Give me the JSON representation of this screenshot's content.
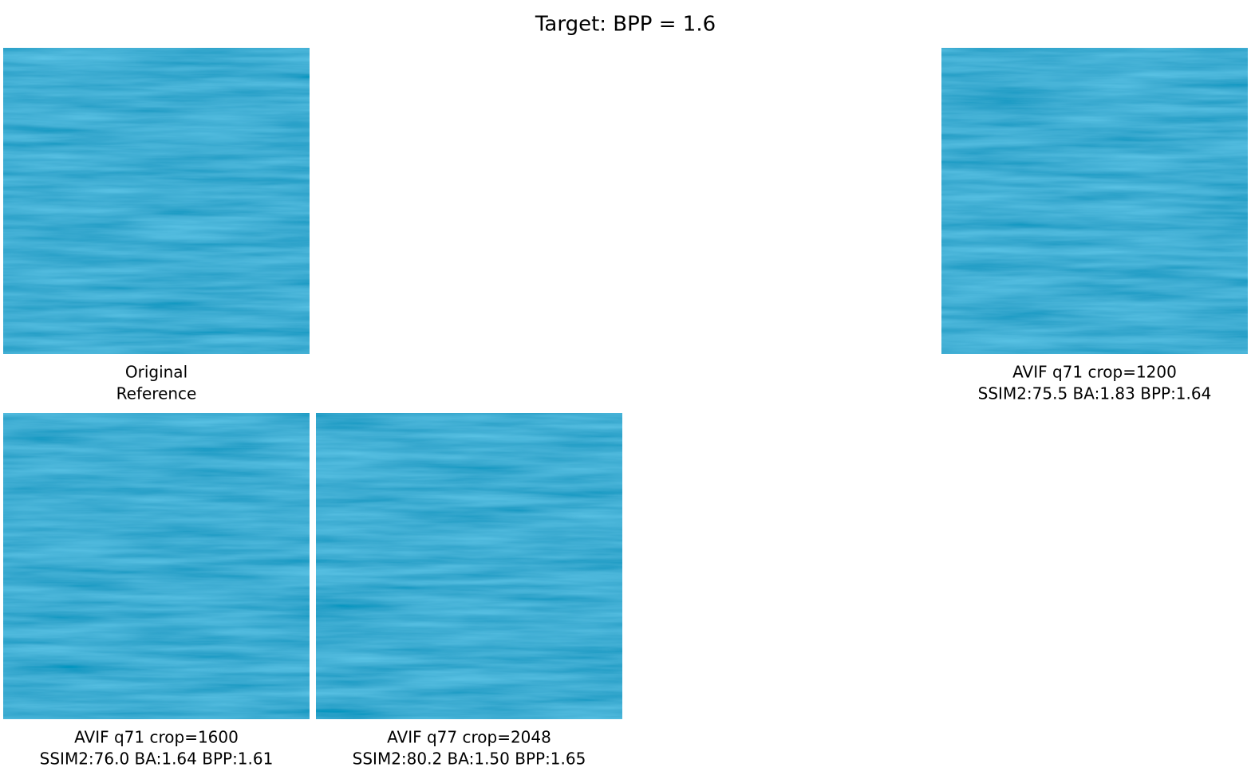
{
  "title": "Target: BPP = 1.6",
  "panels": [
    {
      "caption": [
        "Original",
        "Reference"
      ]
    },
    {
      "caption": [
        "AVIF q71 crop=1200",
        "SSIM2:75.5 BA:1.83 BPP:1.64"
      ]
    },
    {
      "caption": [
        "AVIF q71 crop=1600",
        "SSIM2:76.0 BA:1.64 BPP:1.61"
      ]
    },
    {
      "caption": [
        "AVIF q77 crop=2048",
        "SSIM2:80.2 BA:1.50 BPP:1.65"
      ]
    }
  ]
}
